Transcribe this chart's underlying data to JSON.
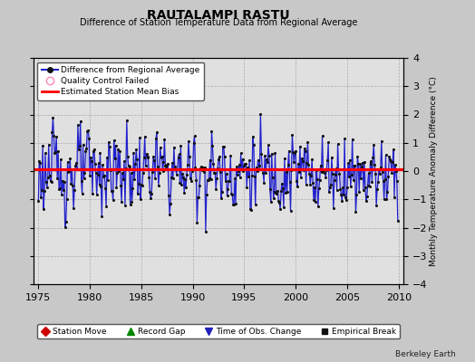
{
  "title": "RAUTALAMPI RASTU",
  "subtitle": "Difference of Station Temperature Data from Regional Average",
  "ylabel_right": "Monthly Temperature Anomaly Difference (°C)",
  "xlim": [
    1974.5,
    2010.5
  ],
  "ylim": [
    -4,
    4
  ],
  "yticks": [
    -4,
    -3,
    -2,
    -1,
    0,
    1,
    2,
    3,
    4
  ],
  "xticks": [
    1975,
    1980,
    1985,
    1990,
    1995,
    2000,
    2005,
    2010
  ],
  "bias_value": 0.05,
  "background_color": "#c8c8c8",
  "plot_bg_color": "#e0e0e0",
  "line_color": "#2222cc",
  "fill_color": "#9999dd",
  "bias_color": "#ff0000",
  "dot_color": "#111111",
  "watermark": "Berkeley Earth",
  "legend1_items": [
    {
      "label": "Difference from Regional Average"
    },
    {
      "label": "Quality Control Failed"
    },
    {
      "label": "Estimated Station Mean Bias"
    }
  ],
  "legend2_items": [
    {
      "label": "Station Move"
    },
    {
      "label": "Record Gap"
    },
    {
      "label": "Time of Obs. Change"
    },
    {
      "label": "Empirical Break"
    }
  ],
  "seed": 123,
  "start_year": 1975,
  "end_year": 2009
}
